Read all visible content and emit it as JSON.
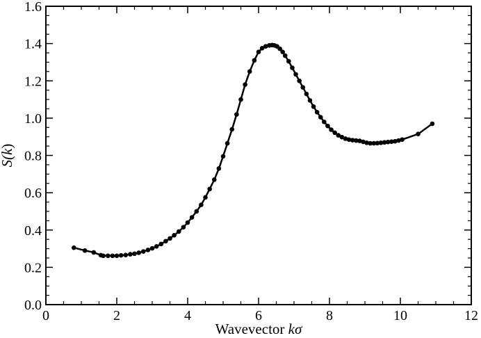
{
  "chart_data": {
    "type": "line",
    "title": "",
    "xlabel_text": "Wavevector ",
    "xlabel_var": "kσ",
    "ylabel_text": "S(",
    "ylabel_var": "k",
    "ylabel_close": ")",
    "xlim": [
      0,
      12
    ],
    "ylim": [
      0,
      1.6
    ],
    "xticks": [
      0,
      2,
      4,
      6,
      8,
      10,
      12
    ],
    "xtick_labels": [
      "0",
      "2",
      "4",
      "6",
      "8",
      "10",
      "12"
    ],
    "yticks": [
      0,
      0.2,
      0.4,
      0.6,
      0.8,
      1.0,
      1.2,
      1.4,
      1.6
    ],
    "ytick_labels": [
      "0.0",
      "0.2",
      "0.4",
      "0.6",
      "0.8",
      "1.0",
      "1.2",
      "1.4",
      "1.6"
    ],
    "grid": false,
    "line_color": "#000000",
    "marker": "circle",
    "series": [
      {
        "x": [
          0.79,
          1.1,
          1.35,
          1.55,
          1.62,
          1.75,
          1.88,
          2.0,
          2.12,
          2.25,
          2.38,
          2.5,
          2.62,
          2.75,
          2.88,
          3.0,
          3.12,
          3.25,
          3.38,
          3.5,
          3.62,
          3.75,
          3.88,
          4.0,
          4.12,
          4.25,
          4.38,
          4.5,
          4.62,
          4.75,
          4.88,
          5.0,
          5.12,
          5.25,
          5.38,
          5.5,
          5.62,
          5.75,
          5.88,
          6.0,
          6.1,
          6.2,
          6.3,
          6.38,
          6.45,
          6.52,
          6.6,
          6.68,
          6.75,
          6.85,
          6.95,
          7.05,
          7.15,
          7.25,
          7.35,
          7.45,
          7.55,
          7.65,
          7.75,
          7.85,
          7.95,
          8.05,
          8.15,
          8.25,
          8.35,
          8.45,
          8.55,
          8.65,
          8.75,
          8.85,
          8.95,
          9.05,
          9.15,
          9.25,
          9.35,
          9.45,
          9.55,
          9.65,
          9.75,
          9.85,
          9.95,
          10.05,
          10.5,
          10.9
        ],
        "y": [
          0.305,
          0.29,
          0.28,
          0.265,
          0.262,
          0.262,
          0.262,
          0.262,
          0.264,
          0.266,
          0.27,
          0.273,
          0.278,
          0.285,
          0.293,
          0.302,
          0.312,
          0.325,
          0.34,
          0.355,
          0.372,
          0.392,
          0.415,
          0.44,
          0.468,
          0.5,
          0.535,
          0.575,
          0.62,
          0.67,
          0.73,
          0.795,
          0.865,
          0.94,
          1.02,
          1.1,
          1.18,
          1.25,
          1.31,
          1.355,
          1.375,
          1.385,
          1.39,
          1.392,
          1.39,
          1.385,
          1.372,
          1.355,
          1.335,
          1.305,
          1.27,
          1.235,
          1.2,
          1.165,
          1.13,
          1.095,
          1.062,
          1.032,
          1.005,
          0.98,
          0.958,
          0.938,
          0.922,
          0.908,
          0.898,
          0.89,
          0.885,
          0.882,
          0.88,
          0.878,
          0.873,
          0.868,
          0.865,
          0.865,
          0.866,
          0.868,
          0.87,
          0.872,
          0.874,
          0.876,
          0.88,
          0.885,
          0.915,
          0.97
        ]
      }
    ]
  }
}
